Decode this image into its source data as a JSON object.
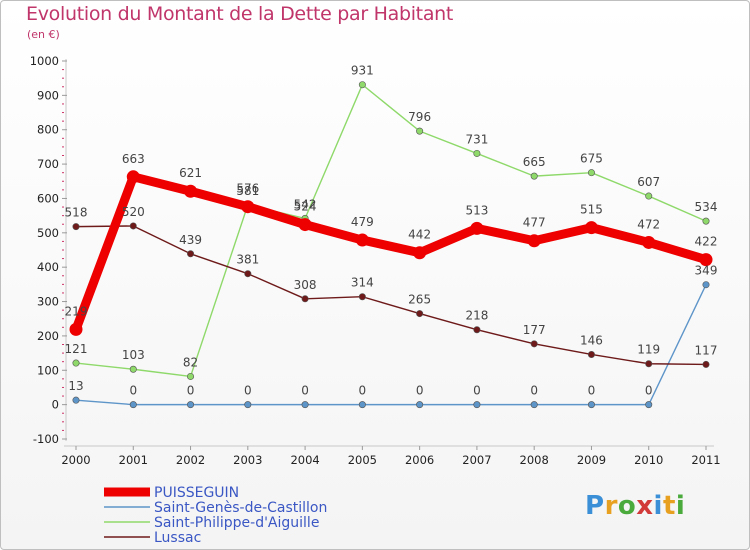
{
  "title": "Evolution du Montant de la Dette par Habitant",
  "subtitle": "(en €)",
  "logo": {
    "text": "Proxiti",
    "colors": [
      "#3a8fd6",
      "#e8a020",
      "#4aaa3c",
      "#d23a3a",
      "#3a8fd6",
      "#e8a020",
      "#4aaa3c"
    ]
  },
  "chart_data": {
    "type": "line",
    "title": "Evolution du Montant de la Dette par Habitant",
    "subtitle": "(en €)",
    "x": [
      "2000",
      "2001",
      "2002",
      "2003",
      "2004",
      "2005",
      "2006",
      "2007",
      "2008",
      "2009",
      "2010",
      "2011"
    ],
    "yticks": [
      "-100",
      "0",
      "100",
      "200",
      "300",
      "400",
      "500",
      "600",
      "700",
      "800",
      "900",
      "1000"
    ],
    "ylim": [
      -100,
      1000
    ],
    "grid": false,
    "legend_position": "bottom-left",
    "series": [
      {
        "name": "PUISSEGUIN",
        "color": "#ee0000",
        "emphasis": true,
        "values": [
          219,
          663,
          621,
          576,
          524,
          479,
          442,
          513,
          477,
          515,
          472,
          422
        ],
        "labels": [
          "219",
          "663",
          "621",
          "576",
          "524",
          "479",
          "442",
          "513",
          "477",
          "515",
          "472",
          "422"
        ]
      },
      {
        "name": "Saint-Genès-de-Castillon",
        "color": "#5e95c9",
        "values": [
          13,
          0,
          0,
          0,
          0,
          0,
          0,
          0,
          0,
          0,
          0,
          349
        ],
        "labels": [
          "13",
          "0",
          "0",
          "0",
          "0",
          "0",
          "0",
          "0",
          "0",
          "0",
          "0",
          "349"
        ]
      },
      {
        "name": "Saint-Philippe-d'Aiguille",
        "color": "#8ed96a",
        "values": [
          121,
          103,
          82,
          581,
          542,
          931,
          796,
          731,
          665,
          675,
          607,
          534
        ],
        "labels": [
          "121",
          "103",
          "82",
          "581",
          "542",
          "931",
          "796",
          "731",
          "665",
          "675",
          "607",
          "534"
        ]
      },
      {
        "name": "Lussac",
        "color": "#6e1a1a",
        "values": [
          518,
          520,
          439,
          381,
          308,
          314,
          265,
          218,
          177,
          146,
          119,
          117
        ],
        "labels": [
          "518",
          "520",
          "439",
          "381",
          "308",
          "314",
          "265",
          "218",
          "177",
          "146",
          "119",
          "117"
        ]
      }
    ]
  }
}
